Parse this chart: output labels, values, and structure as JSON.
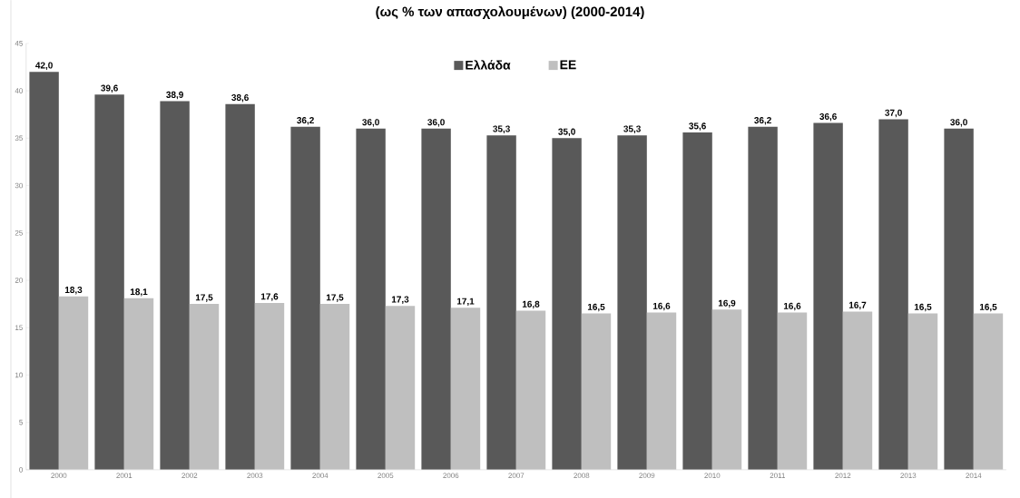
{
  "chart_data": {
    "type": "bar",
    "title": "(ως % των απασχολουμένων) (2000-2014)",
    "categories": [
      "2000",
      "2001",
      "2002",
      "2003",
      "2004",
      "2005",
      "2006",
      "2007",
      "2008",
      "2009",
      "2010",
      "2011",
      "2012",
      "2013",
      "2014"
    ],
    "series": [
      {
        "name": "Ελλάδα",
        "color": "#595959",
        "values": [
          42.0,
          39.6,
          38.9,
          38.6,
          36.2,
          36.0,
          36.0,
          35.3,
          35.0,
          35.3,
          35.6,
          36.2,
          36.6,
          37.0,
          36.0
        ],
        "value_labels": [
          "42,0",
          "39,6",
          "38,9",
          "38,6",
          "36,2",
          "36,0",
          "36,0",
          "35,3",
          "35,0",
          "35,3",
          "35,6",
          "36,2",
          "36,6",
          "37,0",
          "36,0"
        ]
      },
      {
        "name": "ΕΕ",
        "color": "#bfbfbf",
        "values": [
          18.3,
          18.1,
          17.5,
          17.6,
          17.5,
          17.3,
          17.1,
          16.8,
          16.5,
          16.6,
          16.9,
          16.6,
          16.7,
          16.5,
          16.5
        ],
        "value_labels": [
          "18,3",
          "18,1",
          "17,5",
          "17,6",
          "17,5",
          "17,3",
          "17,1",
          "16,8",
          "16,5",
          "16,6",
          "16,9",
          "16,6",
          "16,7",
          "16,5",
          "16,5"
        ]
      }
    ],
    "ylim": [
      0,
      45
    ],
    "yticks": [
      0,
      5,
      10,
      15,
      20,
      25,
      30,
      35,
      40,
      45
    ],
    "legend": "top"
  }
}
